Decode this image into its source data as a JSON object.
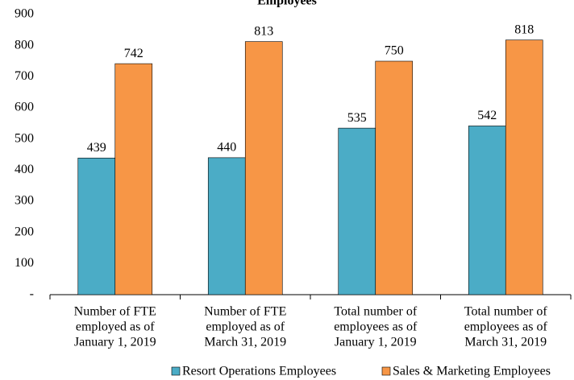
{
  "chart_data": {
    "type": "bar",
    "title": "Employees",
    "categories": [
      [
        "Number of FTE",
        "employed as of",
        "January 1, 2019"
      ],
      [
        "Number of FTE",
        "employed as of",
        "March 31, 2019"
      ],
      [
        "Total number of",
        "employees as of",
        "January 1, 2019"
      ],
      [
        "Total number of",
        "employees as of",
        "March 31, 2019"
      ]
    ],
    "series": [
      {
        "name": "Resort Operations Employees",
        "color": "#4bacc6",
        "values": [
          439,
          440,
          535,
          542
        ]
      },
      {
        "name": "Sales & Marketing Employees",
        "color": "#f79646",
        "values": [
          742,
          813,
          750,
          818
        ]
      }
    ],
    "ylim": [
      0,
      900
    ],
    "yticks": [
      {
        "value": 0,
        "label": "-"
      },
      100,
      200,
      300,
      400,
      500,
      600,
      700,
      800,
      900
    ],
    "legend": "bottom"
  }
}
